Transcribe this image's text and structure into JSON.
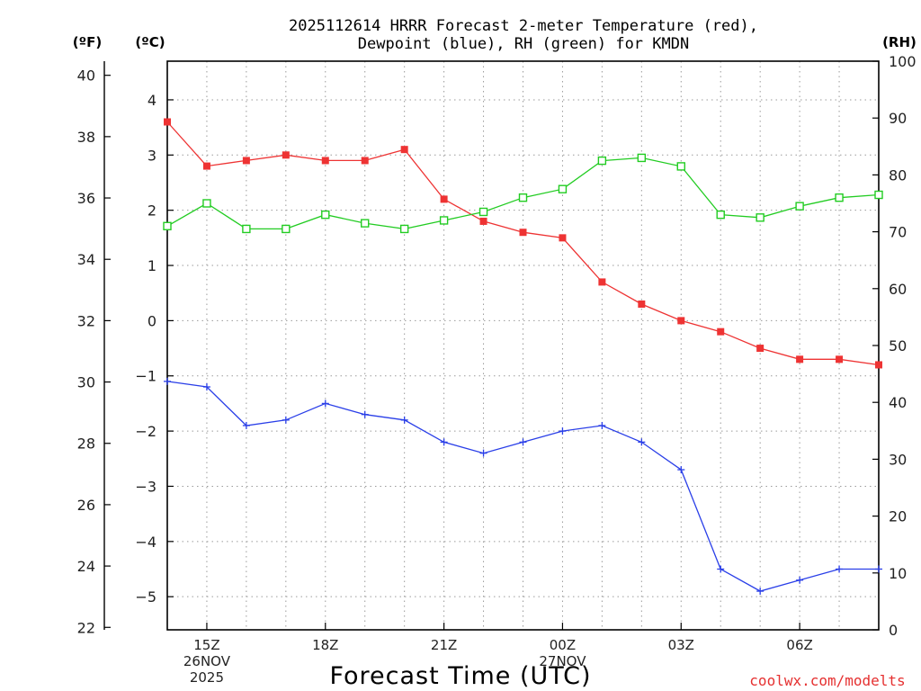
{
  "chart_data": {
    "type": "line",
    "title": [
      "2025112614 HRRR Forecast 2-meter Temperature (red),",
      "Dewpoint (blue), RH (green) for KMDN"
    ],
    "xlabel": "Forecast Time (UTC)",
    "watermark": "coolwx.com/modelts",
    "units": {
      "fahrenheit": "(ºF)",
      "celsius": "(ºC)",
      "rh": "(RH)"
    },
    "x_hours": [
      14,
      15,
      16,
      17,
      18,
      19,
      20,
      21,
      22,
      23,
      24,
      25,
      26,
      27,
      28,
      29,
      30,
      31,
      32
    ],
    "celsius_range": [
      -5.6,
      4.7
    ],
    "celsius_ticks": [
      4,
      3,
      2,
      1,
      0,
      -1,
      -2,
      -3,
      -4,
      -5
    ],
    "celsius_tick_labels": [
      "4",
      "3",
      "2",
      "1",
      "0",
      "−1",
      "−2",
      "−3",
      "−4",
      "−5"
    ],
    "fahrenheit_ticks": [
      "40",
      "38",
      "36",
      "34",
      "32",
      "30",
      "28",
      "26",
      "24",
      "22"
    ],
    "rh_range": [
      0,
      100
    ],
    "rh_ticks": [
      "100",
      "90",
      "80",
      "70",
      "60",
      "50",
      "40",
      "30",
      "20",
      "10",
      "0"
    ],
    "x_ticks": [
      {
        "hour": 15,
        "lines": [
          "15Z",
          "26NOV",
          "2025"
        ]
      },
      {
        "hour": 18,
        "lines": [
          "18Z"
        ]
      },
      {
        "hour": 21,
        "lines": [
          "21Z"
        ]
      },
      {
        "hour": 24,
        "lines": [
          "00Z",
          "27NOV"
        ]
      },
      {
        "hour": 27,
        "lines": [
          "03Z"
        ]
      },
      {
        "hour": 30,
        "lines": [
          "06Z"
        ]
      }
    ],
    "series": [
      {
        "name": "Temperature",
        "color": "#ee3333",
        "axis": "celsius",
        "marker": "filled-square",
        "values": [
          3.6,
          2.8,
          2.9,
          3.0,
          2.9,
          2.9,
          3.1,
          2.2,
          1.8,
          1.6,
          1.5,
          0.7,
          0.3,
          0.0,
          -0.2,
          -0.5,
          -0.7,
          -0.7,
          -0.8
        ]
      },
      {
        "name": "Dewpoint",
        "color": "#2a3fe8",
        "axis": "celsius",
        "marker": "plus",
        "values": [
          -1.1,
          -1.2,
          -1.9,
          -1.8,
          -1.5,
          -1.7,
          -1.8,
          -2.2,
          -2.4,
          -2.2,
          -2.0,
          -1.9,
          -2.2,
          -2.7,
          -4.5,
          -4.9,
          -4.7,
          -4.5,
          -4.5
        ]
      },
      {
        "name": "RH",
        "color": "#22cc22",
        "axis": "rh",
        "marker": "open-square",
        "values": [
          71,
          75,
          70.5,
          70.5,
          73,
          71.5,
          70.5,
          72,
          73.5,
          76,
          77.5,
          82.5,
          83,
          81.5,
          73,
          72.5,
          74.5,
          76,
          76.5
        ]
      }
    ]
  }
}
